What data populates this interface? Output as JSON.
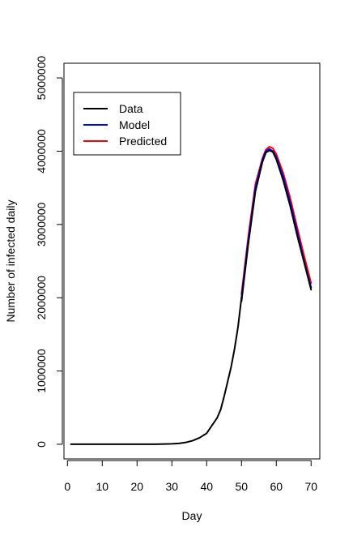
{
  "chart_data": {
    "type": "line",
    "xlabel": "Day",
    "ylabel": "Number of infected daily",
    "xlim": [
      -1,
      72.5
    ],
    "ylim": [
      -200000,
      5200000
    ],
    "xticks": [
      0,
      10,
      20,
      30,
      40,
      50,
      60,
      70
    ],
    "xtick_labels": [
      "0",
      "10",
      "20",
      "30",
      "40",
      "50",
      "60",
      "70"
    ],
    "yticks": [
      0,
      1000000,
      2000000,
      3000000,
      4000000,
      5000000
    ],
    "ytick_labels": [
      "0",
      "1000000",
      "2000000",
      "3000000",
      "4000000",
      "5000000"
    ],
    "legend_position": "top-left",
    "grid": false,
    "series": [
      {
        "name": "Data",
        "color": "#000000",
        "x": [
          1,
          5,
          10,
          15,
          20,
          25,
          28,
          30,
          32,
          34,
          36,
          38,
          40,
          42,
          43,
          44,
          45,
          46,
          47,
          48,
          49,
          50
        ],
        "y": [
          0,
          0,
          0,
          0,
          0,
          1000,
          3000,
          6000,
          12000,
          25000,
          50000,
          90000,
          150000,
          290000,
          360000,
          470000,
          650000,
          850000,
          1050000,
          1300000,
          1600000,
          2000000
        ]
      },
      {
        "name": "Model",
        "color": "#0000ff",
        "x": [
          50,
          52,
          54,
          56,
          57,
          58,
          59,
          60,
          62,
          64,
          66,
          68,
          70
        ],
        "y": [
          2000000,
          2800000,
          3500000,
          3880000,
          4000000,
          4030000,
          4000000,
          3920000,
          3650000,
          3300000,
          2900000,
          2500000,
          2140000
        ]
      },
      {
        "name": "Predicted",
        "color": "#ff0000",
        "x": [
          50,
          52,
          54,
          56,
          57,
          58,
          59,
          60,
          62,
          64,
          66,
          68,
          70
        ],
        "y": [
          2050000,
          2850000,
          3550000,
          3900000,
          4020000,
          4060000,
          4040000,
          3960000,
          3700000,
          3360000,
          2960000,
          2570000,
          2200000
        ]
      },
      {
        "name": "Data",
        "legend": false,
        "color": "#000000",
        "x": [
          50,
          52,
          54,
          56,
          57,
          58,
          59,
          60,
          62,
          64,
          66,
          68,
          70
        ],
        "y": [
          1950000,
          2750000,
          3450000,
          3850000,
          3980000,
          4010000,
          3990000,
          3890000,
          3600000,
          3250000,
          2850000,
          2480000,
          2110000
        ]
      }
    ]
  }
}
